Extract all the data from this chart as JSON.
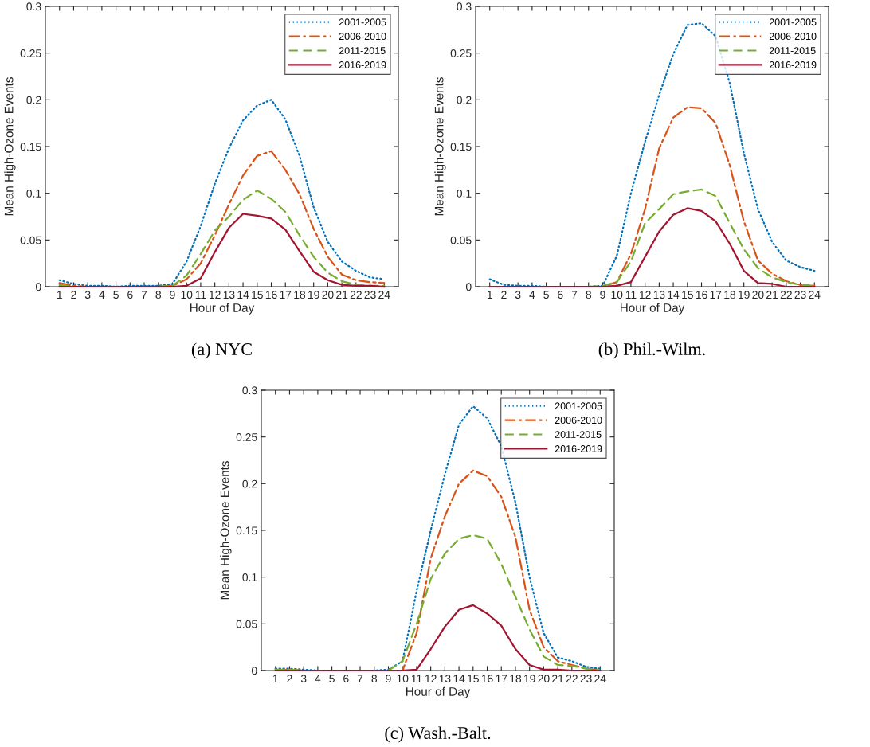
{
  "chart_data": [
    {
      "type": "line",
      "xlabel": "Hour of Day",
      "ylabel": "Mean High-Ozone Events",
      "annotations": [
        "(a) NYC"
      ],
      "x": [
        1,
        2,
        3,
        4,
        5,
        6,
        7,
        8,
        9,
        10,
        11,
        12,
        13,
        14,
        15,
        16,
        17,
        18,
        19,
        20,
        21,
        22,
        23,
        24
      ],
      "xlim": [
        0,
        25
      ],
      "xticks": [
        1,
        2,
        3,
        4,
        5,
        6,
        7,
        8,
        9,
        10,
        11,
        12,
        13,
        14,
        15,
        16,
        17,
        18,
        19,
        20,
        21,
        22,
        23,
        24
      ],
      "ylim": [
        0,
        0.3
      ],
      "yticks": [
        0,
        0.05,
        0.1,
        0.15,
        0.2,
        0.25,
        0.3
      ],
      "grid": false,
      "legend": "top right",
      "marker": "none",
      "series": [
        {
          "name": "2001-2005",
          "color": "#0072bd",
          "line_style": "dotted",
          "values": [
            0.007,
            0.003,
            0.001,
            0.001,
            0,
            0.001,
            0.001,
            0.001,
            0.003,
            0.027,
            0.065,
            0.11,
            0.148,
            0.178,
            0.194,
            0.2,
            0.179,
            0.14,
            0.085,
            0.048,
            0.027,
            0.017,
            0.01,
            0.008
          ]
        },
        {
          "name": "2006-2010",
          "color": "#d95319",
          "line_style": "dashdot",
          "values": [
            0.004,
            0.001,
            0,
            0,
            0,
            0,
            0,
            0,
            0.001,
            0.008,
            0.025,
            0.055,
            0.088,
            0.119,
            0.14,
            0.145,
            0.125,
            0.099,
            0.062,
            0.032,
            0.013,
            0.007,
            0.005,
            0.004
          ]
        },
        {
          "name": "2011-2015",
          "color": "#77ac30",
          "line_style": "dashed",
          "values": [
            0.002,
            0,
            0,
            0,
            0,
            0,
            0,
            0,
            0.001,
            0.012,
            0.035,
            0.06,
            0.075,
            0.093,
            0.103,
            0.094,
            0.08,
            0.055,
            0.032,
            0.015,
            0.006,
            0.002,
            0.001,
            0.001
          ]
        },
        {
          "name": "2016-2019",
          "color": "#a2142f",
          "line_style": "solid",
          "values": [
            0,
            0,
            0,
            0,
            0,
            0,
            0,
            0,
            0,
            0.001,
            0.009,
            0.037,
            0.063,
            0.078,
            0.076,
            0.073,
            0.061,
            0.038,
            0.016,
            0.007,
            0.002,
            0.001,
            0.001,
            0
          ]
        }
      ]
    },
    {
      "type": "line",
      "xlabel": "Hour of Day",
      "ylabel": "Mean High-Ozone Events",
      "annotations": [
        "(b) Phil.-Wilm."
      ],
      "x": [
        1,
        2,
        3,
        4,
        5,
        6,
        7,
        8,
        9,
        10,
        11,
        12,
        13,
        14,
        15,
        16,
        17,
        18,
        19,
        20,
        21,
        22,
        23,
        24
      ],
      "xlim": [
        0,
        25
      ],
      "xticks": [
        1,
        2,
        3,
        4,
        5,
        6,
        7,
        8,
        9,
        10,
        11,
        12,
        13,
        14,
        15,
        16,
        17,
        18,
        19,
        20,
        21,
        22,
        23,
        24
      ],
      "ylim": [
        0,
        0.3
      ],
      "yticks": [
        0,
        0.05,
        0.1,
        0.15,
        0.2,
        0.25,
        0.3
      ],
      "grid": false,
      "legend": "top right",
      "marker": "none",
      "series": [
        {
          "name": "2001-2005",
          "color": "#0072bd",
          "line_style": "dotted",
          "values": [
            0.008,
            0.002,
            0.001,
            0.001,
            0,
            0,
            0,
            0,
            0.001,
            0.033,
            0.1,
            0.155,
            0.205,
            0.249,
            0.28,
            0.282,
            0.268,
            0.218,
            0.143,
            0.083,
            0.048,
            0.028,
            0.021,
            0.017
          ]
        },
        {
          "name": "2006-2010",
          "color": "#d95319",
          "line_style": "dashdot",
          "values": [
            null,
            null,
            null,
            null,
            null,
            null,
            null,
            0,
            0,
            0.005,
            0.035,
            0.083,
            0.148,
            0.181,
            0.192,
            0.191,
            0.175,
            0.13,
            0.07,
            0.028,
            0.014,
            0.006,
            0.002,
            0.001
          ]
        },
        {
          "name": "2011-2015",
          "color": "#77ac30",
          "line_style": "dashed",
          "values": [
            null,
            null,
            null,
            null,
            null,
            null,
            0,
            0,
            0.001,
            0.005,
            0.027,
            0.068,
            0.083,
            0.099,
            0.102,
            0.104,
            0.097,
            0.068,
            0.04,
            0.02,
            0.01,
            0.005,
            0.002,
            0.001
          ]
        },
        {
          "name": "2016-2019",
          "color": "#a2142f",
          "line_style": "solid",
          "values": [
            0,
            0,
            0,
            0,
            0,
            0,
            0,
            0,
            0,
            0.001,
            0.005,
            0.032,
            0.059,
            0.077,
            0.084,
            0.081,
            0.07,
            0.046,
            0.017,
            0.004,
            0.003,
            0,
            0,
            0
          ]
        }
      ]
    },
    {
      "type": "line",
      "xlabel": "Hour of Day",
      "ylabel": "Mean High-Ozone Events",
      "annotations": [
        "(c) Wash.-Balt."
      ],
      "x": [
        1,
        2,
        3,
        4,
        5,
        6,
        7,
        8,
        9,
        10,
        11,
        12,
        13,
        14,
        15,
        16,
        17,
        18,
        19,
        20,
        21,
        22,
        23,
        24
      ],
      "xlim": [
        0,
        25
      ],
      "xticks": [
        1,
        2,
        3,
        4,
        5,
        6,
        7,
        8,
        9,
        10,
        11,
        12,
        13,
        14,
        15,
        16,
        17,
        18,
        19,
        20,
        21,
        22,
        23,
        24
      ],
      "ylim": [
        0,
        0.3
      ],
      "yticks": [
        0,
        0.05,
        0.1,
        0.15,
        0.2,
        0.25,
        0.3
      ],
      "grid": false,
      "legend": "top right",
      "marker": "none",
      "series": [
        {
          "name": "2001-2005",
          "color": "#0072bd",
          "line_style": "dotted",
          "values": [
            0.002,
            0.002,
            0.001,
            0,
            0,
            0,
            0,
            0,
            0.001,
            0.01,
            0.085,
            0.15,
            0.21,
            0.263,
            0.283,
            0.27,
            0.24,
            0.18,
            0.1,
            0.04,
            0.014,
            0.01,
            0.004,
            0.002
          ]
        },
        {
          "name": "2006-2010",
          "color": "#d95319",
          "line_style": "dashdot",
          "values": [
            0,
            0.001,
            0,
            0,
            0,
            0,
            0,
            0,
            0,
            0,
            0.04,
            0.12,
            0.165,
            0.2,
            0.214,
            0.208,
            0.186,
            0.143,
            0.065,
            0.025,
            0.01,
            0.006,
            0.002,
            0
          ]
        },
        {
          "name": "2011-2015",
          "color": "#77ac30",
          "line_style": "dashed",
          "values": [
            0.001,
            0.001,
            0,
            0,
            0,
            0,
            0,
            0,
            0,
            0.01,
            0.05,
            0.098,
            0.125,
            0.141,
            0.145,
            0.141,
            0.114,
            0.079,
            0.044,
            0.015,
            0.006,
            0.005,
            0.002,
            0
          ]
        },
        {
          "name": "2016-2019",
          "color": "#a2142f",
          "line_style": "solid",
          "values": [
            0,
            0,
            0,
            0,
            0,
            0,
            0,
            0,
            0,
            0,
            0.001,
            0.023,
            0.047,
            0.065,
            0.07,
            0.061,
            0.048,
            0.023,
            0.006,
            0.001,
            0.001,
            0,
            0,
            0
          ]
        }
      ]
    }
  ]
}
